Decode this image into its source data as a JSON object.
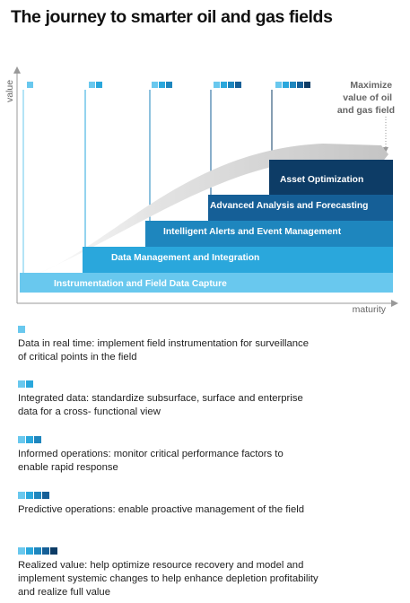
{
  "title": "The journey to smarter oil and gas fields",
  "axes": {
    "y_label": "value",
    "x_label": "maturity"
  },
  "maximize_label": [
    "Maximize",
    "value of oil",
    "and gas field"
  ],
  "colors": {
    "c1": "#69c8ee",
    "c2": "#2aa7dc",
    "c3": "#1e86be",
    "c4": "#155f97",
    "c5": "#0d3c66"
  },
  "tiers": [
    {
      "label": "Instrumentation and Field Data Capture"
    },
    {
      "label": "Data Management and Integration"
    },
    {
      "label": "Intelligent Alerts and Event Management"
    },
    {
      "label": "Advanced Analysis and Forecasting"
    },
    {
      "label": "Asset Optimization"
    }
  ],
  "stages": [
    {
      "squares": 1,
      "text": "Data in real time: implement field instrumentation for surveillance of critical points in the field"
    },
    {
      "squares": 2,
      "text": "Integrated data: standardize subsurface, surface and enterprise data for a cross- functional view"
    },
    {
      "squares": 3,
      "text": "Informed operations: monitor critical performance factors to enable rapid response"
    },
    {
      "squares": 4,
      "text": "Predictive operations: enable proactive management of the field"
    },
    {
      "squares": 5,
      "text": "Realized value: help optimize resource recovery and model and implement systemic changes to help enhance depletion profitability and realize full value"
    }
  ]
}
